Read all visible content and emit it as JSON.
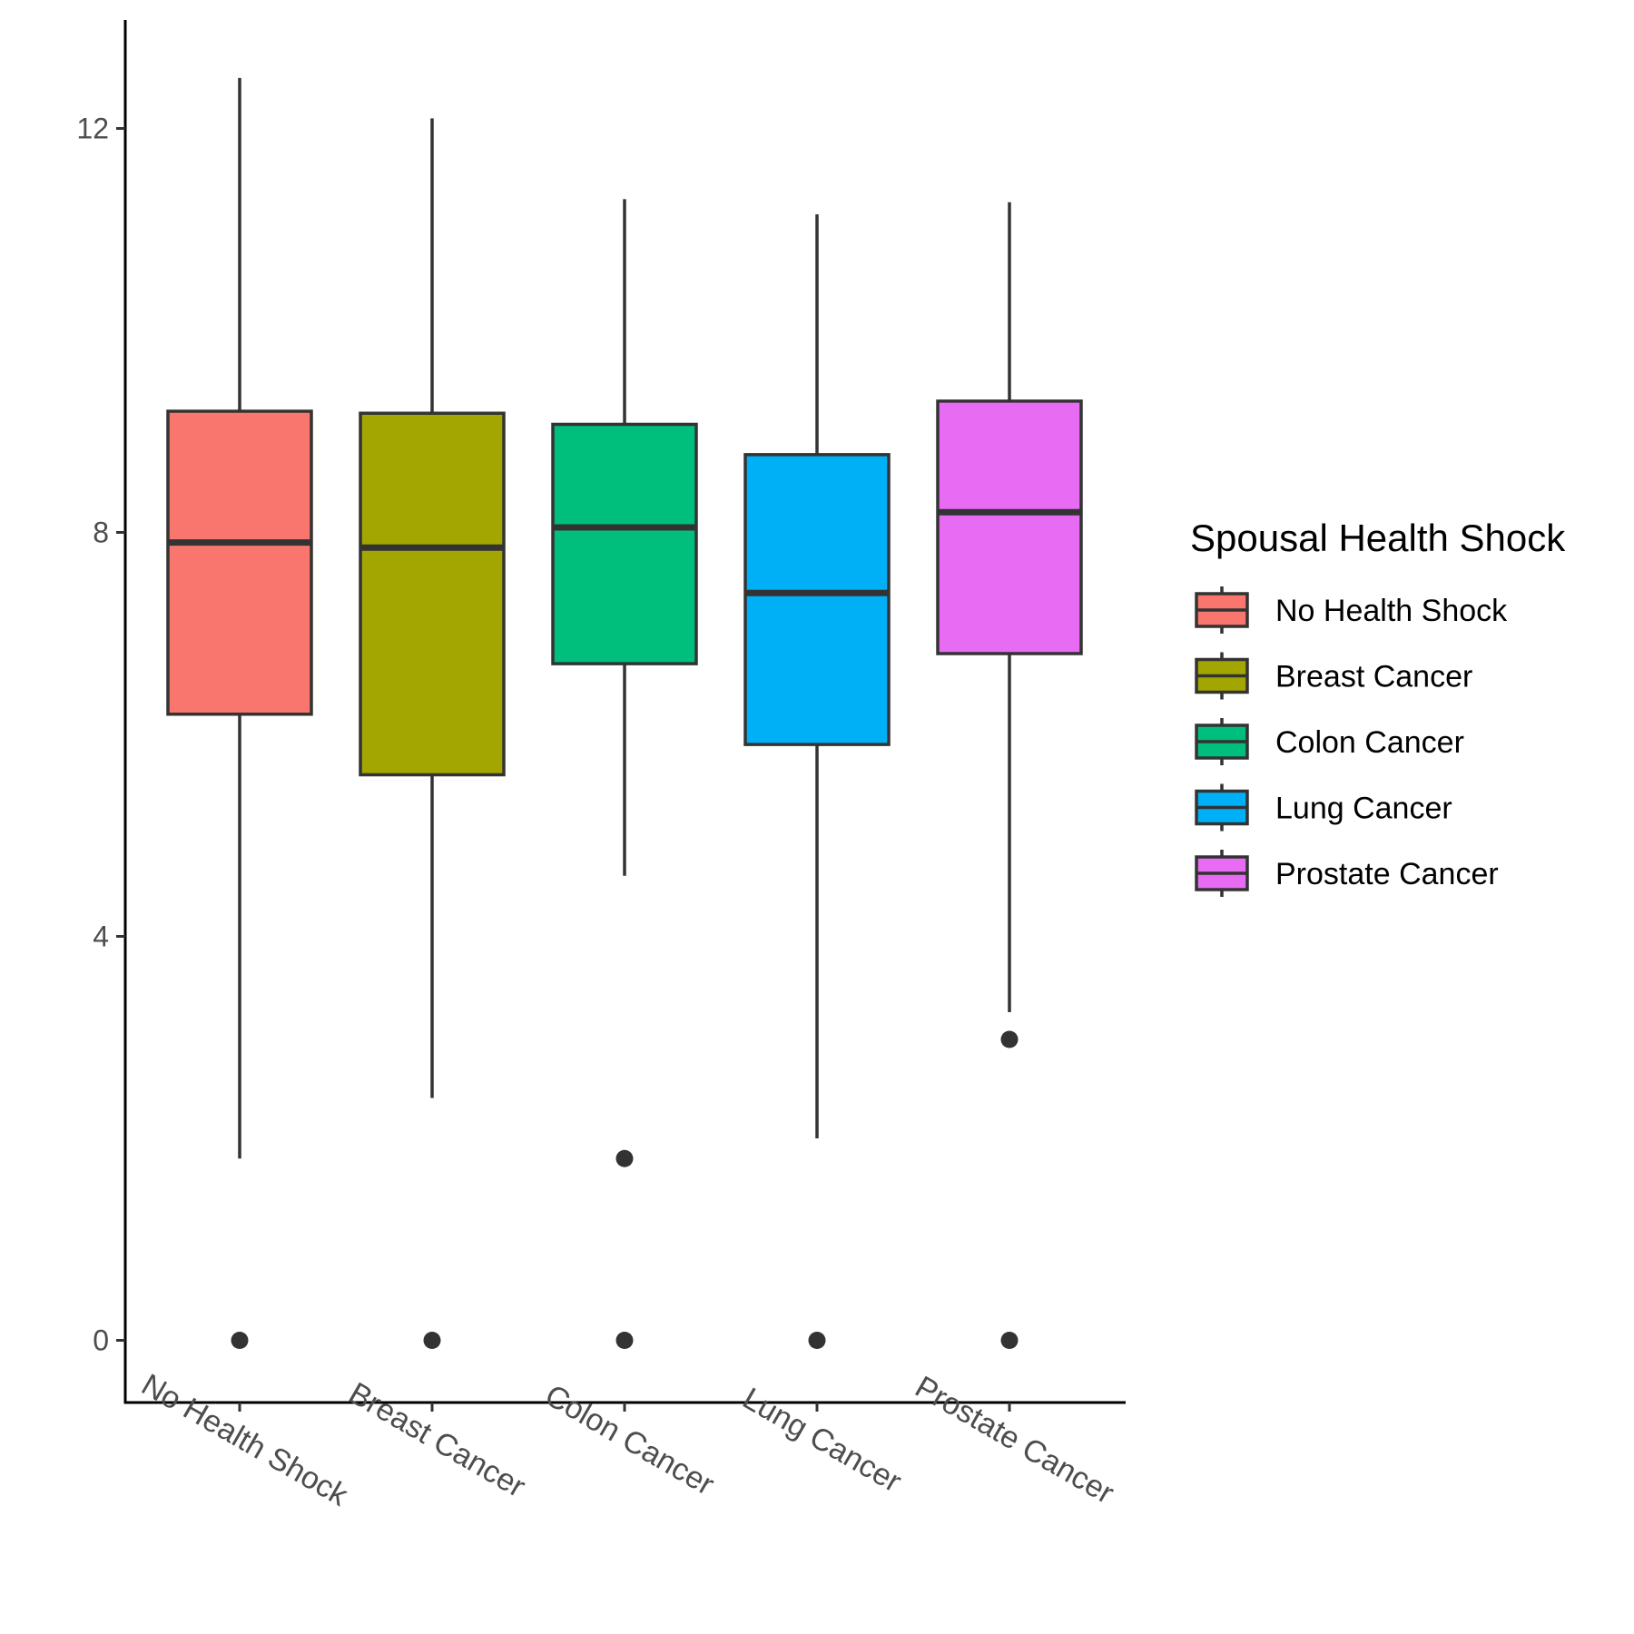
{
  "chart_data": {
    "type": "boxplot",
    "title": "",
    "xlabel": "",
    "ylabel": "",
    "ylim": [
      -0.6,
      13.2
    ],
    "y_ticks": [
      0,
      4,
      8,
      12
    ],
    "y_tick_labels": [
      "0",
      "4",
      "8",
      "12"
    ],
    "categories": [
      "No Health Shock",
      "Breast Cancer",
      "Colon Cancer",
      "Lung Cancer",
      "Prostate Cancer"
    ],
    "grid": false,
    "legend": {
      "title": "Spousal Health Shock",
      "position": "right"
    },
    "series": [
      {
        "name": "No Health Shock",
        "color": "#F8766D",
        "whisker_low": 1.8,
        "q1": 6.2,
        "median": 7.9,
        "q3": 9.2,
        "whisker_high": 12.5,
        "outliers": [
          0
        ]
      },
      {
        "name": "Breast Cancer",
        "color": "#A3A500",
        "whisker_low": 2.4,
        "q1": 5.6,
        "median": 7.85,
        "q3": 9.18,
        "whisker_high": 12.1,
        "outliers": [
          0
        ]
      },
      {
        "name": "Colon Cancer",
        "color": "#00BF7D",
        "whisker_low": 4.6,
        "q1": 6.7,
        "median": 8.05,
        "q3": 9.07,
        "whisker_high": 11.3,
        "outliers": [
          1.8,
          0
        ]
      },
      {
        "name": "Lung Cancer",
        "color": "#00B0F6",
        "whisker_low": 2.0,
        "q1": 5.9,
        "median": 7.4,
        "q3": 8.77,
        "whisker_high": 11.15,
        "outliers": [
          0
        ]
      },
      {
        "name": "Prostate Cancer",
        "color": "#E76BF3",
        "whisker_low": 3.25,
        "q1": 6.8,
        "median": 8.2,
        "q3": 9.3,
        "whisker_high": 11.27,
        "outliers": [
          2.98,
          0
        ]
      }
    ]
  }
}
